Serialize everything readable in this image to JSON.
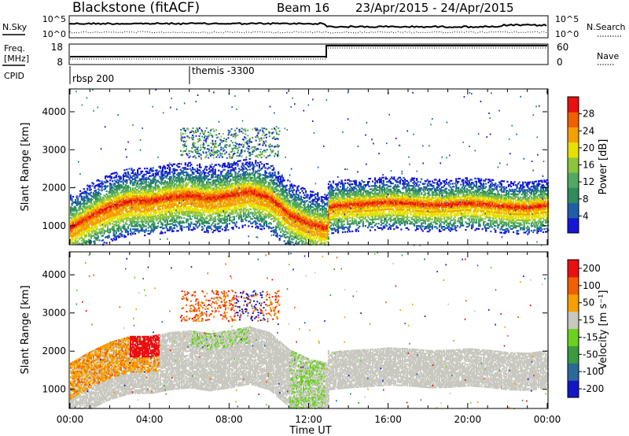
{
  "header": {
    "station": "Blackstone (fitACF)",
    "beam": "Beam 16",
    "date_range": "23/Apr/2015 - 24/Apr/2015"
  },
  "noise_panel": {
    "left_label": "N.Sky",
    "left_ticks": [
      "10^5",
      "10^0"
    ],
    "right_label": "N.Search",
    "right_ticks": [
      "10^5",
      "10^0"
    ]
  },
  "freq_panel": {
    "left_label_line1": "Freq.",
    "left_label_line2": "[MHz]",
    "left_ticks": [
      "18",
      "8"
    ],
    "right_label": "Nave",
    "right_ticks": [
      "60",
      "0"
    ]
  },
  "cpid_panel": {
    "label": "CPID",
    "entries": [
      {
        "time_hr": 0.0,
        "text": "rbsp 200"
      },
      {
        "time_hr": 6.0,
        "text": "themis -3300"
      }
    ]
  },
  "chart_data": [
    {
      "type": "heatmap",
      "name": "power",
      "ylabel": "Slant Range [km]",
      "xlabel": "Time UT",
      "x_range_hr": [
        0,
        24
      ],
      "xticks": [
        "00:00",
        "04:00",
        "08:00",
        "12:00",
        "16:00",
        "20:00",
        "00:00"
      ],
      "ylim": [
        500,
        4600
      ],
      "yticks": [
        1000,
        2000,
        3000,
        4000
      ],
      "colorbar": {
        "label": "Power [dB]",
        "ticks": [
          "4",
          "8",
          "12",
          "16",
          "20",
          "24",
          "28"
        ],
        "range": [
          0,
          30
        ],
        "colors": [
          "#1515d8",
          "#1f5fa8",
          "#2f8c5c",
          "#52a860",
          "#8cc43c",
          "#e6e000",
          "#f5a000",
          "#f06000",
          "#e81010"
        ]
      },
      "echo_band_center_km": [
        [
          0,
          950
        ],
        [
          1,
          1250
        ],
        [
          2,
          1500
        ],
        [
          3,
          1650
        ],
        [
          4,
          1650
        ],
        [
          5,
          1750
        ],
        [
          6,
          1800
        ],
        [
          7,
          1720
        ],
        [
          8,
          1800
        ],
        [
          9,
          1900
        ],
        [
          10,
          1750
        ],
        [
          11,
          1300
        ],
        [
          12,
          1050
        ],
        [
          12.9,
          950
        ],
        [
          13,
          1500
        ],
        [
          14,
          1550
        ],
        [
          15,
          1580
        ],
        [
          16,
          1620
        ],
        [
          17,
          1600
        ],
        [
          18,
          1550
        ],
        [
          19,
          1560
        ],
        [
          20,
          1600
        ],
        [
          21,
          1560
        ],
        [
          22,
          1500
        ],
        [
          23,
          1480
        ],
        [
          24,
          1550
        ]
      ],
      "upper_patch": {
        "time_hr": [
          5.5,
          10.5
        ],
        "range_km": [
          2800,
          3600
        ]
      }
    },
    {
      "type": "heatmap",
      "name": "velocity",
      "ylabel": "Slant Range [km]",
      "xlabel": "Time UT",
      "x_range_hr": [
        0,
        24
      ],
      "xticks": [
        "00:00",
        "04:00",
        "08:00",
        "12:00",
        "16:00",
        "20:00",
        "00:00"
      ],
      "ylim": [
        500,
        4600
      ],
      "yticks": [
        1000,
        2000,
        3000,
        4000
      ],
      "colorbar": {
        "label": "Velocity [m s⁻¹]",
        "ticks": [
          "200",
          "100",
          "50",
          "15",
          "-15",
          "-50",
          "-100",
          "-200"
        ],
        "range": [
          -250,
          250
        ],
        "colors": [
          "#1515c8",
          "#2a6a9a",
          "#3c9a40",
          "#6bd020",
          "#c8c8c0",
          "#f5a000",
          "#f06000",
          "#e81010"
        ]
      }
    }
  ]
}
